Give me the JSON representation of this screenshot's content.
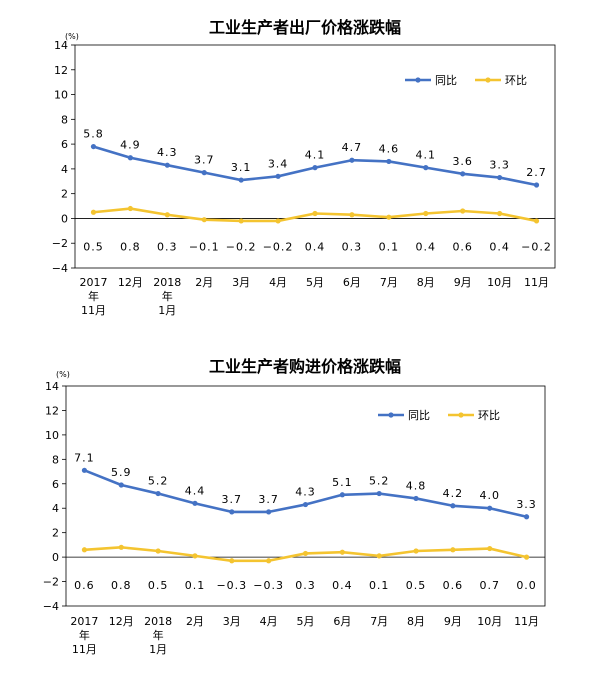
{
  "chart_data": [
    {
      "type": "line",
      "title": "工业生产者出厂价格涨跌幅",
      "yunit": "(%)",
      "ylim": [
        -4,
        14
      ],
      "yticks": [
        -4,
        -2,
        0,
        2,
        4,
        6,
        8,
        10,
        12,
        14
      ],
      "ytick_labels": [
        "−4",
        "−2",
        "0",
        "2",
        "4",
        "6",
        "8",
        "10",
        "12",
        "14"
      ],
      "categories": [
        [
          "2017",
          "年",
          "11月"
        ],
        [
          "12月"
        ],
        [
          "2018",
          "年",
          "1月"
        ],
        [
          "2月"
        ],
        [
          "3月"
        ],
        [
          "4月"
        ],
        [
          "5月"
        ],
        [
          "6月"
        ],
        [
          "7月"
        ],
        [
          "8月"
        ],
        [
          "9月"
        ],
        [
          "10月"
        ],
        [
          "11月"
        ]
      ],
      "series": [
        {
          "name": "同比",
          "color": "#4472c4",
          "values": [
            5.8,
            4.9,
            4.3,
            3.7,
            3.1,
            3.4,
            4.1,
            4.7,
            4.6,
            4.1,
            3.6,
            3.3,
            2.7
          ],
          "labels": [
            "5.8",
            "4.9",
            "4.3",
            "3.7",
            "3.1",
            "3.4",
            "4.1",
            "4.7",
            "4.6",
            "4.1",
            "3.6",
            "3.3",
            "2.7"
          ]
        },
        {
          "name": "环比",
          "color": "#f4c430",
          "values": [
            0.5,
            0.8,
            0.3,
            -0.1,
            -0.2,
            -0.2,
            0.4,
            0.3,
            0.1,
            0.4,
            0.6,
            0.4,
            -0.2
          ],
          "labels": [
            "0.5",
            "0.8",
            "0.3",
            "−0.1",
            "−0.2",
            "−0.2",
            "0.4",
            "0.3",
            "0.1",
            "0.4",
            "0.6",
            "0.4",
            "−0.2"
          ]
        }
      ],
      "legend": "top-right"
    },
    {
      "type": "line",
      "title": "工业生产者购进价格涨跌幅",
      "yunit": "(%)",
      "ylim": [
        -4,
        14
      ],
      "yticks": [
        -4,
        -2,
        0,
        2,
        4,
        6,
        8,
        10,
        12,
        14
      ],
      "ytick_labels": [
        "−4",
        "−2",
        "0",
        "2",
        "4",
        "6",
        "8",
        "10",
        "12",
        "14"
      ],
      "categories": [
        [
          "2017",
          "年",
          "11月"
        ],
        [
          "12月"
        ],
        [
          "2018",
          "年",
          "1月"
        ],
        [
          "2月"
        ],
        [
          "3月"
        ],
        [
          "4月"
        ],
        [
          "5月"
        ],
        [
          "6月"
        ],
        [
          "7月"
        ],
        [
          "8月"
        ],
        [
          "9月"
        ],
        [
          "10月"
        ],
        [
          "11月"
        ]
      ],
      "series": [
        {
          "name": "同比",
          "color": "#4472c4",
          "values": [
            7.1,
            5.9,
            5.2,
            4.4,
            3.7,
            3.7,
            4.3,
            5.1,
            5.2,
            4.8,
            4.2,
            4.0,
            3.3
          ],
          "labels": [
            "7.1",
            "5.9",
            "5.2",
            "4.4",
            "3.7",
            "3.7",
            "4.3",
            "5.1",
            "5.2",
            "4.8",
            "4.2",
            "4.0",
            "3.3"
          ]
        },
        {
          "name": "环比",
          "color": "#f4c430",
          "values": [
            0.6,
            0.8,
            0.5,
            0.1,
            -0.3,
            -0.3,
            0.3,
            0.4,
            0.1,
            0.5,
            0.6,
            0.7,
            0.0
          ],
          "labels": [
            "0.6",
            "0.8",
            "0.5",
            "0.1",
            "−0.3",
            "−0.3",
            "0.3",
            "0.4",
            "0.1",
            "0.5",
            "0.6",
            "0.7",
            "0.0"
          ]
        }
      ],
      "legend": "top-right"
    }
  ]
}
